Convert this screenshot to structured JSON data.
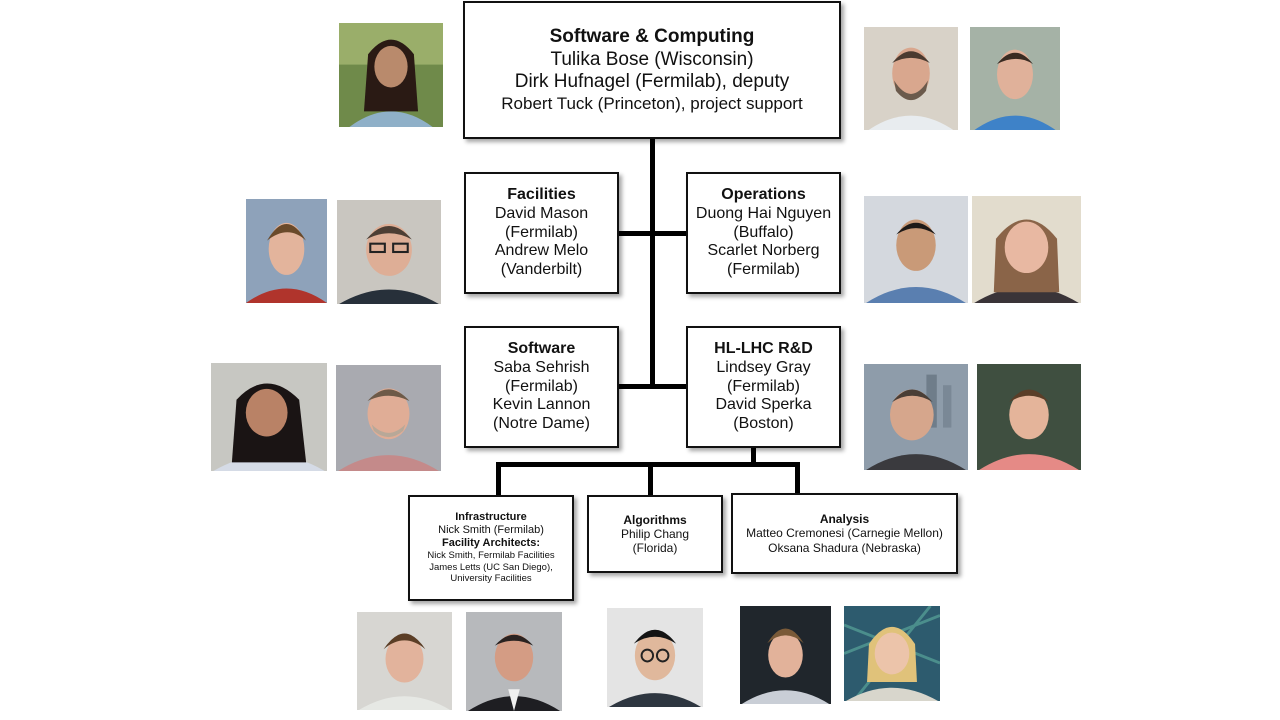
{
  "top": {
    "title": "Software & Computing",
    "lines": [
      "Tulika Bose (Wisconsin)",
      "Dirk Hufnagel (Fermilab), deputy",
      "Robert Tuck (Princeton), project support"
    ]
  },
  "facilities": {
    "title": "Facilities",
    "lines": [
      "David Mason",
      "(Fermilab)",
      "Andrew Melo",
      "(Vanderbilt)"
    ]
  },
  "operations": {
    "title": "Operations",
    "lines": [
      "Duong Hai Nguyen",
      "(Buffalo)",
      "Scarlet Norberg",
      "(Fermilab)"
    ]
  },
  "software": {
    "title": "Software",
    "lines": [
      "Saba Sehrish",
      "(Fermilab)",
      "Kevin Lannon",
      "(Notre Dame)"
    ]
  },
  "hllhc": {
    "title": "HL-LHC R&D",
    "lines": [
      "Lindsey Gray",
      "(Fermilab)",
      "David Sperka",
      "(Boston)"
    ]
  },
  "infrastructure": {
    "title": "Infrastructure",
    "lead": "Nick Smith (Fermilab)",
    "subtitle": "Facility Architects:",
    "details": [
      "Nick Smith, Fermilab Facilities",
      "James Letts (UC San Diego),",
      "University Facilities"
    ]
  },
  "algorithms": {
    "title": "Algorithms",
    "lines": [
      "Philip Chang",
      "(Florida)"
    ]
  },
  "analysis": {
    "title": "Analysis",
    "lines": [
      "Matteo Cremonesi (Carnegie Mellon)",
      "Oksana Shadura (Nebraska)"
    ]
  },
  "colors": {
    "border": "#111111",
    "connector": "#000000",
    "background": "#ffffff"
  }
}
